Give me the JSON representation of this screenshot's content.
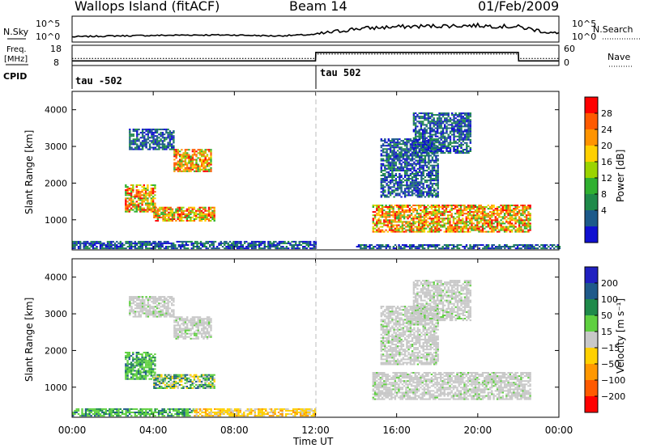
{
  "header": {
    "station": "Wallops Island (fitACF)",
    "beam": "Beam 14",
    "date": "01/Feb/2009"
  },
  "summary_panels": {
    "nsky_label": "N.Sky",
    "nsearch_label": "N.Search",
    "freq_label_line1": "Freq.",
    "freq_label_line2": "[MHz]",
    "cpid_label": "CPID",
    "nave_label": "Nave",
    "left_ticks_top": [
      "10^5",
      "10^0"
    ],
    "right_ticks_top": [
      "10^5",
      "10^0"
    ],
    "left_ticks_freq": [
      "18",
      "8"
    ],
    "right_ticks_nave": [
      "60",
      "0"
    ],
    "cpid_segments": [
      "tau -502",
      "tau 502"
    ]
  },
  "colorbars": {
    "power": {
      "label": "Power [dB]",
      "ticks": [
        "28",
        "24",
        "20",
        "16",
        "12",
        "8",
        "4"
      ],
      "colors": [
        "#ff0000",
        "#ff5a00",
        "#ff9400",
        "#ffd000",
        "#9bd400",
        "#30b030",
        "#1f8a4a",
        "#1c5a8a",
        "#1010d0"
      ]
    },
    "velocity": {
      "label": "Velocity [m s⁻¹]",
      "ticks": [
        "200",
        "100",
        "50",
        "15",
        "−15",
        "−50",
        "−100",
        "−200"
      ],
      "colors": [
        "#2020c0",
        "#1f5a8a",
        "#1f8a4a",
        "#5fd040",
        "#c8c8c8",
        "#ffd000",
        "#ff9800",
        "#ff5a00",
        "#ff0000"
      ]
    }
  },
  "chart_data": [
    {
      "type": "line",
      "title": "N.Sky / N.Search",
      "x": [
        "00:00",
        "02:00",
        "04:00",
        "06:00",
        "08:00",
        "10:00",
        "12:00",
        "14:00",
        "16:00",
        "18:00",
        "20:00",
        "22:00",
        "24:00"
      ],
      "series": [
        {
          "name": "N.Sky",
          "values": [
            0.8,
            1.0,
            1.1,
            1.2,
            1.2,
            1.0,
            1.3,
            2.6,
            3.0,
            3.2,
            3.3,
            3.0,
            1.4
          ]
        }
      ],
      "ylabel": "",
      "yscale": "log",
      "ylim": [
        "10^0",
        "10^5"
      ]
    },
    {
      "type": "line",
      "title": "Freq. / Nave",
      "x": [
        "00:00",
        "12:00",
        "12:01",
        "22:00",
        "22:01",
        "24:00"
      ],
      "series": [
        {
          "name": "Freq.",
          "values": [
            10.3,
            10.3,
            14.5,
            14.5,
            10.3,
            10.3
          ]
        },
        {
          "name": "Nave",
          "values": [
            21,
            21,
            34,
            34,
            21,
            21
          ]
        }
      ],
      "ylim": [
        8,
        18
      ],
      "y2lim": [
        0,
        60
      ]
    },
    {
      "type": "heatmap",
      "title": "Power",
      "xlabel": "Time UT",
      "ylabel": "Slant Range [km]",
      "xticks": [
        "00:00",
        "04:00",
        "08:00",
        "12:00",
        "16:00",
        "20:00",
        "00:00"
      ],
      "yticks": [
        1000,
        2000,
        3000,
        4000
      ],
      "xlim": [
        0,
        24
      ],
      "ylim": [
        180,
        4500
      ],
      "regions": [
        {
          "t0": 2.6,
          "t1": 4.1,
          "r0": 1200,
          "r1": 1950,
          "level": "high"
        },
        {
          "t0": 4.0,
          "t1": 7.0,
          "r0": 950,
          "r1": 1350,
          "level": "high"
        },
        {
          "t0": 5.0,
          "t1": 6.8,
          "r0": 2300,
          "r1": 2900,
          "level": "high"
        },
        {
          "t0": 2.8,
          "t1": 5.0,
          "r0": 2900,
          "r1": 3450,
          "level": "low"
        },
        {
          "t0": 0.0,
          "t1": 12.0,
          "r0": 200,
          "r1": 420,
          "level": "low"
        },
        {
          "t0": 14.8,
          "t1": 22.6,
          "r0": 650,
          "r1": 1400,
          "level": "high"
        },
        {
          "t0": 15.2,
          "t1": 18.0,
          "r0": 1600,
          "r1": 3200,
          "level": "low"
        },
        {
          "t0": 16.8,
          "t1": 19.6,
          "r0": 2800,
          "r1": 3900,
          "level": "low"
        },
        {
          "t0": 14.0,
          "t1": 24.0,
          "r0": 200,
          "r1": 320,
          "level": "low"
        }
      ]
    },
    {
      "type": "heatmap",
      "title": "Velocity",
      "xlabel": "Time UT",
      "ylabel": "Slant Range [km]",
      "xticks": [
        "00:00",
        "04:00",
        "08:00",
        "12:00",
        "16:00",
        "20:00",
        "00:00"
      ],
      "yticks": [
        1000,
        2000,
        3000,
        4000
      ],
      "xlim": [
        0,
        24
      ],
      "ylim": [
        180,
        4500
      ],
      "regions": [
        {
          "t0": 2.6,
          "t1": 4.1,
          "r0": 1200,
          "r1": 1950,
          "vel": "positive"
        },
        {
          "t0": 4.0,
          "t1": 7.0,
          "r0": 950,
          "r1": 1350,
          "vel": "mixed"
        },
        {
          "t0": 5.0,
          "t1": 6.8,
          "r0": 2300,
          "r1": 2900,
          "vel": "near-zero"
        },
        {
          "t0": 2.8,
          "t1": 5.0,
          "r0": 2900,
          "r1": 3450,
          "vel": "near-zero"
        },
        {
          "t0": 0.0,
          "t1": 6.0,
          "r0": 200,
          "r1": 420,
          "vel": "positive"
        },
        {
          "t0": 6.0,
          "t1": 12.0,
          "r0": 200,
          "r1": 420,
          "vel": "negative"
        },
        {
          "t0": 14.8,
          "t1": 22.6,
          "r0": 650,
          "r1": 1400,
          "vel": "near-zero"
        },
        {
          "t0": 15.2,
          "t1": 18.0,
          "r0": 1600,
          "r1": 3200,
          "vel": "near-zero"
        },
        {
          "t0": 16.8,
          "t1": 19.6,
          "r0": 2800,
          "r1": 3900,
          "vel": "near-zero"
        }
      ]
    }
  ]
}
